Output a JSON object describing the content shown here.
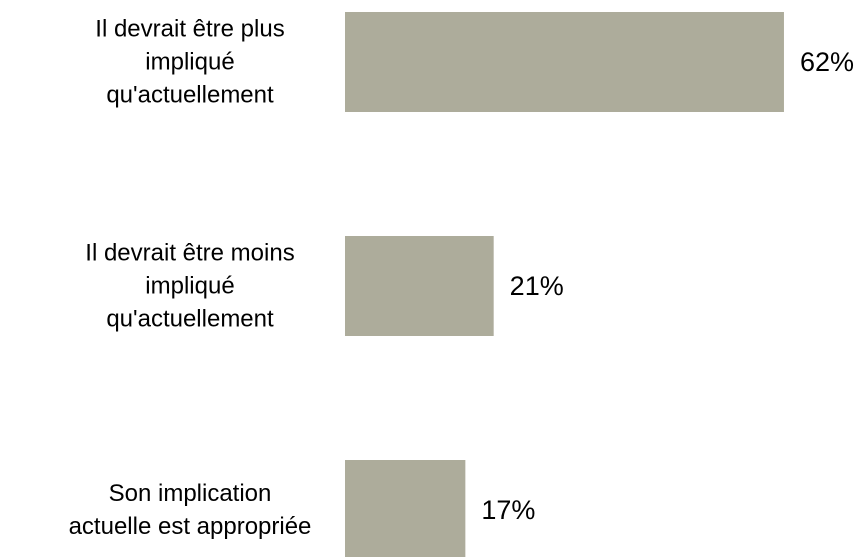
{
  "chart_data": {
    "type": "bar",
    "orientation": "horizontal",
    "categories": [
      "Il devrait être plus\nimpliqué\nqu'actuellement",
      "Il devrait être moins\nimpliqué\nqu'actuellement",
      "Son implication\nactuelle est appropriée"
    ],
    "values": [
      62,
      21,
      17
    ],
    "value_labels": [
      "62%",
      "21%",
      "17%"
    ],
    "color": "#adac9b"
  }
}
